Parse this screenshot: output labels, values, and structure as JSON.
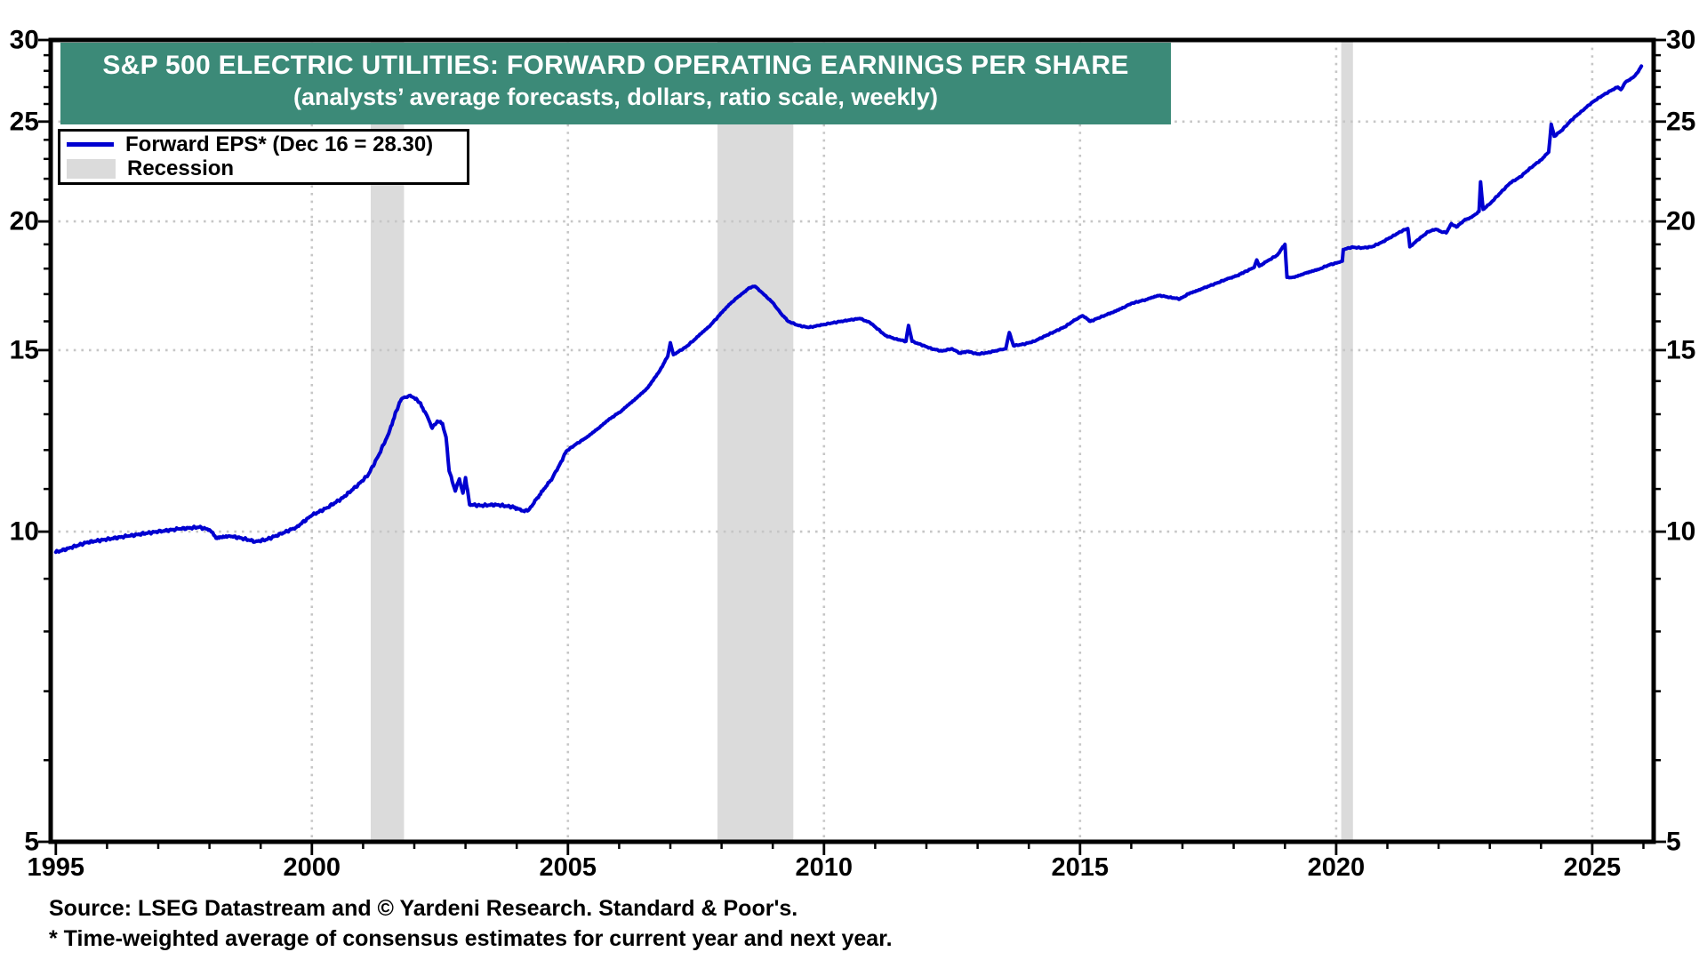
{
  "banner": {
    "title": "S&P 500 ELECTRIC UTILITIES: FORWARD OPERATING EARNINGS PER SHARE",
    "subtitle": "(analysts’ average forecasts, dollars, ratio scale, weekly)",
    "bg_color": "#3C8A78"
  },
  "legend": {
    "series_label": "Forward EPS* (Dec 16 = 28.30)",
    "recession_label": "Recession",
    "line_color": "#0000D0",
    "recession_color": "#DBDBDB"
  },
  "footer": {
    "source": "Source: LSEG Datastream and © Yardeni Research. Standard & Poor's.",
    "note": "* Time-weighted average of consensus estimates for current year and next year."
  },
  "chart_data": {
    "type": "line",
    "title": "S&P 500 ELECTRIC UTILITIES: FORWARD OPERATING EARNINGS PER SHARE",
    "subtitle": "(analysts’ average forecasts, dollars, ratio scale, weekly)",
    "y_scale": "log",
    "ylim": [
      5,
      30
    ],
    "xlim": [
      1994.9,
      2026.2
    ],
    "y_major_ticks": [
      5,
      10,
      15,
      20,
      25,
      30
    ],
    "y_minor_ticks_every_integer": true,
    "y_gridlines": [
      10,
      15,
      20,
      25
    ],
    "x_major_ticks": [
      1995,
      2000,
      2005,
      2010,
      2015,
      2020,
      2025
    ],
    "x_gridlines": [
      2000,
      2005,
      2010,
      2015,
      2020,
      2025
    ],
    "x_minor_step": 1,
    "grid": "dotted",
    "legend_position": "top-left",
    "axis_labels_both_sides": true,
    "last_point": {
      "date_label": "Dec 16",
      "value": 28.3
    },
    "recessions": [
      [
        2001.15,
        2001.8
      ],
      [
        2007.92,
        2009.4
      ],
      [
        2020.1,
        2020.33
      ]
    ],
    "series": [
      {
        "name": "Forward EPS* (Dec 16 = 28.30)",
        "color": "#0000D0",
        "points": [
          [
            1995.0,
            9.55
          ],
          [
            1995.3,
            9.65
          ],
          [
            1995.6,
            9.76
          ],
          [
            1996.0,
            9.83
          ],
          [
            1996.4,
            9.9
          ],
          [
            1996.8,
            9.97
          ],
          [
            1997.0,
            10.0
          ],
          [
            1997.4,
            10.06
          ],
          [
            1997.8,
            10.1
          ],
          [
            1998.0,
            10.04
          ],
          [
            1998.15,
            9.85
          ],
          [
            1998.4,
            9.9
          ],
          [
            1998.6,
            9.86
          ],
          [
            1998.9,
            9.78
          ],
          [
            1999.1,
            9.82
          ],
          [
            1999.4,
            9.95
          ],
          [
            1999.7,
            10.1
          ],
          [
            2000.0,
            10.37
          ],
          [
            2000.3,
            10.55
          ],
          [
            2000.6,
            10.78
          ],
          [
            2000.9,
            11.1
          ],
          [
            2001.1,
            11.35
          ],
          [
            2001.3,
            11.85
          ],
          [
            2001.5,
            12.45
          ],
          [
            2001.65,
            13.1
          ],
          [
            2001.75,
            13.45
          ],
          [
            2001.9,
            13.55
          ],
          [
            2002.0,
            13.48
          ],
          [
            2002.1,
            13.35
          ],
          [
            2002.25,
            12.95
          ],
          [
            2002.35,
            12.6
          ],
          [
            2002.45,
            12.8
          ],
          [
            2002.55,
            12.73
          ],
          [
            2002.62,
            12.35
          ],
          [
            2002.68,
            11.45
          ],
          [
            2002.8,
            10.95
          ],
          [
            2002.88,
            11.25
          ],
          [
            2002.95,
            10.9
          ],
          [
            2003.0,
            11.28
          ],
          [
            2003.08,
            10.62
          ],
          [
            2003.3,
            10.6
          ],
          [
            2003.6,
            10.62
          ],
          [
            2003.9,
            10.57
          ],
          [
            2004.05,
            10.52
          ],
          [
            2004.15,
            10.46
          ],
          [
            2004.25,
            10.52
          ],
          [
            2004.4,
            10.78
          ],
          [
            2004.55,
            11.02
          ],
          [
            2004.7,
            11.28
          ],
          [
            2004.85,
            11.65
          ],
          [
            2004.97,
            11.97
          ],
          [
            2005.15,
            12.15
          ],
          [
            2005.35,
            12.33
          ],
          [
            2005.6,
            12.6
          ],
          [
            2005.85,
            12.9
          ],
          [
            2006.05,
            13.1
          ],
          [
            2006.3,
            13.42
          ],
          [
            2006.55,
            13.78
          ],
          [
            2006.8,
            14.35
          ],
          [
            2006.95,
            14.8
          ],
          [
            2007.0,
            15.25
          ],
          [
            2007.06,
            14.85
          ],
          [
            2007.3,
            15.1
          ],
          [
            2007.5,
            15.4
          ],
          [
            2007.75,
            15.8
          ],
          [
            2007.95,
            16.2
          ],
          [
            2008.2,
            16.7
          ],
          [
            2008.4,
            17.02
          ],
          [
            2008.55,
            17.25
          ],
          [
            2008.65,
            17.3
          ],
          [
            2008.78,
            17.08
          ],
          [
            2008.9,
            16.85
          ],
          [
            2009.0,
            16.68
          ],
          [
            2009.15,
            16.3
          ],
          [
            2009.3,
            16.0
          ],
          [
            2009.5,
            15.85
          ],
          [
            2009.7,
            15.78
          ],
          [
            2009.9,
            15.85
          ],
          [
            2010.1,
            15.92
          ],
          [
            2010.4,
            16.02
          ],
          [
            2010.7,
            16.1
          ],
          [
            2010.9,
            15.95
          ],
          [
            2011.0,
            15.8
          ],
          [
            2011.2,
            15.5
          ],
          [
            2011.4,
            15.38
          ],
          [
            2011.6,
            15.3
          ],
          [
            2011.65,
            15.85
          ],
          [
            2011.72,
            15.3
          ],
          [
            2011.9,
            15.18
          ],
          [
            2012.1,
            15.05
          ],
          [
            2012.3,
            14.97
          ],
          [
            2012.5,
            15.05
          ],
          [
            2012.65,
            14.9
          ],
          [
            2012.8,
            14.96
          ],
          [
            2013.0,
            14.87
          ],
          [
            2013.2,
            14.92
          ],
          [
            2013.4,
            15.0
          ],
          [
            2013.55,
            15.05
          ],
          [
            2013.62,
            15.6
          ],
          [
            2013.7,
            15.15
          ],
          [
            2013.9,
            15.2
          ],
          [
            2014.1,
            15.3
          ],
          [
            2014.4,
            15.55
          ],
          [
            2014.7,
            15.8
          ],
          [
            2014.9,
            16.05
          ],
          [
            2015.05,
            16.2
          ],
          [
            2015.2,
            16.0
          ],
          [
            2015.4,
            16.15
          ],
          [
            2015.6,
            16.3
          ],
          [
            2015.85,
            16.5
          ],
          [
            2016.0,
            16.65
          ],
          [
            2016.3,
            16.8
          ],
          [
            2016.55,
            16.95
          ],
          [
            2016.75,
            16.88
          ],
          [
            2016.95,
            16.82
          ],
          [
            2017.15,
            17.05
          ],
          [
            2017.4,
            17.22
          ],
          [
            2017.7,
            17.45
          ],
          [
            2017.9,
            17.61
          ],
          [
            2018.05,
            17.7
          ],
          [
            2018.2,
            17.85
          ],
          [
            2018.4,
            18.05
          ],
          [
            2018.45,
            18.35
          ],
          [
            2018.5,
            18.1
          ],
          [
            2018.65,
            18.3
          ],
          [
            2018.85,
            18.55
          ],
          [
            2019.0,
            19.0
          ],
          [
            2019.04,
            17.65
          ],
          [
            2019.15,
            17.65
          ],
          [
            2019.4,
            17.82
          ],
          [
            2019.65,
            17.96
          ],
          [
            2019.85,
            18.14
          ],
          [
            2020.05,
            18.25
          ],
          [
            2020.12,
            18.3
          ],
          [
            2020.14,
            18.78
          ],
          [
            2020.3,
            18.88
          ],
          [
            2020.5,
            18.85
          ],
          [
            2020.7,
            18.9
          ],
          [
            2020.9,
            19.1
          ],
          [
            2021.1,
            19.35
          ],
          [
            2021.3,
            19.6
          ],
          [
            2021.4,
            19.68
          ],
          [
            2021.44,
            18.9
          ],
          [
            2021.6,
            19.2
          ],
          [
            2021.8,
            19.55
          ],
          [
            2021.95,
            19.65
          ],
          [
            2022.05,
            19.55
          ],
          [
            2022.15,
            19.5
          ],
          [
            2022.25,
            19.9
          ],
          [
            2022.35,
            19.75
          ],
          [
            2022.5,
            20.05
          ],
          [
            2022.65,
            20.2
          ],
          [
            2022.79,
            20.45
          ],
          [
            2022.82,
            21.85
          ],
          [
            2022.87,
            20.55
          ],
          [
            2023.0,
            20.8
          ],
          [
            2023.2,
            21.3
          ],
          [
            2023.4,
            21.8
          ],
          [
            2023.6,
            22.1
          ],
          [
            2023.8,
            22.55
          ],
          [
            2024.0,
            22.95
          ],
          [
            2024.15,
            23.35
          ],
          [
            2024.2,
            24.85
          ],
          [
            2024.26,
            24.2
          ],
          [
            2024.4,
            24.5
          ],
          [
            2024.6,
            25.1
          ],
          [
            2024.8,
            25.6
          ],
          [
            2025.0,
            26.1
          ],
          [
            2025.2,
            26.5
          ],
          [
            2025.4,
            26.85
          ],
          [
            2025.5,
            27.0
          ],
          [
            2025.56,
            26.85
          ],
          [
            2025.65,
            27.3
          ],
          [
            2025.8,
            27.6
          ],
          [
            2025.9,
            27.95
          ],
          [
            2025.96,
            28.3
          ]
        ]
      }
    ],
    "colors": {
      "line": "#0000D0",
      "recession_band": "#DBDBDB",
      "grid_dots": "#C6C6C6",
      "frame": "#000000",
      "banner_bg": "#3C8A78",
      "banner_text": "#FFFFFF"
    }
  }
}
